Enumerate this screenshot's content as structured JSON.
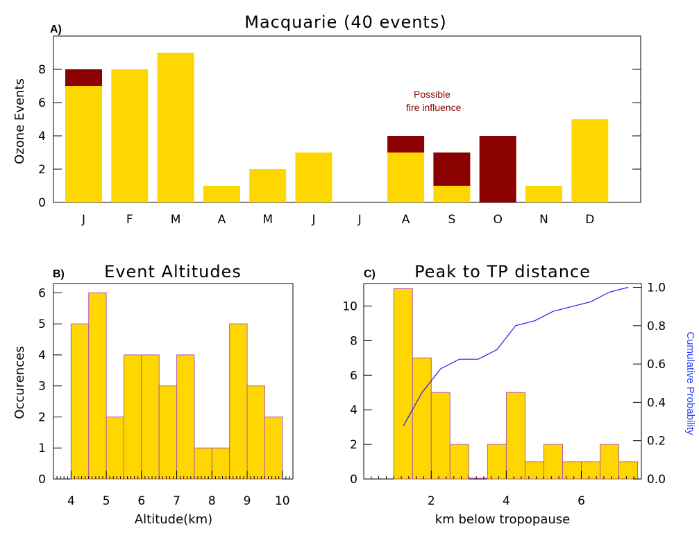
{
  "colors": {
    "gold": "#ffd700",
    "fire": "#8b0000",
    "bar_edge": "#b05aa8",
    "cum_line": "#1a1aff",
    "cum_label": "#1e3cff"
  },
  "panelA": {
    "letter": "A)",
    "title": "Macquarie (40 events)",
    "ylabel": "Ozone Events",
    "annotation_line1": "Possible",
    "annotation_line2": "fire influence"
  },
  "panelB": {
    "letter": "B)",
    "title": "Event Altitudes",
    "xlabel": "Altitude(km)",
    "ylabel": "Occurences"
  },
  "panelC": {
    "letter": "C)",
    "title": "Peak to TP distance",
    "xlabel": "km below tropopause",
    "y2label": "Cumulative Probability"
  },
  "chart_data": [
    {
      "type": "bar",
      "title": "Macquarie (40 events)",
      "ylabel": "Ozone Events",
      "categories": [
        "J",
        "F",
        "M",
        "A",
        "M",
        "J",
        "J",
        "A",
        "S",
        "O",
        "N",
        "D"
      ],
      "stacked": true,
      "series": [
        {
          "values": [
            7,
            8,
            9,
            1,
            2,
            3,
            0,
            3,
            1,
            0,
            1,
            5
          ]
        },
        {
          "name": "Possible fire influence",
          "values": [
            1,
            0,
            0,
            0,
            0,
            0,
            0,
            1,
            2,
            4,
            0,
            0
          ]
        }
      ],
      "ylim": [
        0,
        10
      ],
      "yticks": [
        0,
        2,
        4,
        6,
        8
      ]
    },
    {
      "type": "bar",
      "title": "Event Altitudes",
      "xlabel": "Altitude(km)",
      "ylabel": "Occurences",
      "bin_edges": [
        4,
        4.5,
        5,
        5.5,
        6,
        6.5,
        7,
        7.5,
        8,
        8.5,
        9,
        9.5,
        10
      ],
      "values": [
        5,
        6,
        2,
        4,
        4,
        3,
        4,
        1,
        1,
        5,
        3,
        2
      ],
      "xlim": [
        3.5,
        10.3
      ],
      "ylim": [
        0,
        6.3
      ],
      "xticks": [
        4,
        5,
        6,
        7,
        8,
        9,
        10
      ],
      "yticks": [
        0,
        1,
        2,
        3,
        4,
        5,
        6
      ]
    },
    {
      "type": "bar",
      "title": "Peak to TP distance",
      "xlabel": "km below tropopause",
      "y2label": "Cumulative Probability",
      "bin_edges": [
        1,
        1.5,
        2,
        2.5,
        3,
        3.5,
        4,
        4.5,
        5,
        5.5,
        6,
        6.5,
        7,
        7.5
      ],
      "values": [
        11,
        7,
        5,
        2,
        0,
        2,
        5,
        1,
        2,
        1,
        1,
        2,
        1
      ],
      "xlim": [
        0.2,
        7.6
      ],
      "ylim": [
        0,
        11.3
      ],
      "xticks": [
        2,
        4,
        6
      ],
      "yticks": [
        0,
        2,
        4,
        6,
        8,
        10
      ],
      "cumulative": {
        "x": [
          1.25,
          1.75,
          2.25,
          2.75,
          3.25,
          3.75,
          4.25,
          4.75,
          5.25,
          5.75,
          6.25,
          6.75,
          7.25
        ],
        "y": [
          0.275,
          0.45,
          0.575,
          0.625,
          0.625,
          0.675,
          0.8,
          0.825,
          0.875,
          0.9,
          0.925,
          0.975,
          1.0
        ],
        "ylim": [
          0,
          1.02
        ],
        "yticks": [
          "0.0",
          "0.2",
          "0.4",
          "0.6",
          "0.8",
          "1.0"
        ]
      }
    }
  ]
}
